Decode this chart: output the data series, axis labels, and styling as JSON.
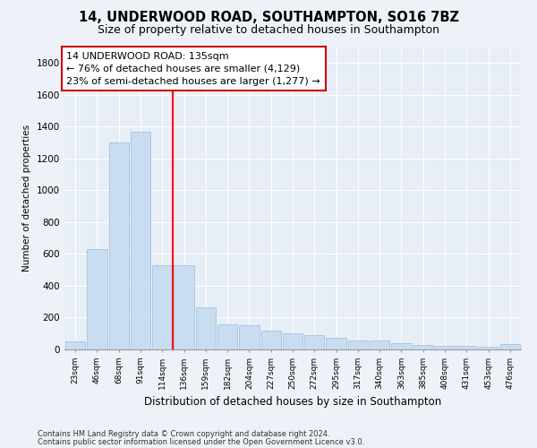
{
  "title": "14, UNDERWOOD ROAD, SOUTHAMPTON, SO16 7BZ",
  "subtitle": "Size of property relative to detached houses in Southampton",
  "xlabel": "Distribution of detached houses by size in Southampton",
  "ylabel": "Number of detached properties",
  "categories": [
    "23sqm",
    "46sqm",
    "68sqm",
    "91sqm",
    "114sqm",
    "136sqm",
    "159sqm",
    "182sqm",
    "204sqm",
    "227sqm",
    "250sqm",
    "272sqm",
    "295sqm",
    "317sqm",
    "340sqm",
    "363sqm",
    "385sqm",
    "408sqm",
    "431sqm",
    "453sqm",
    "476sqm"
  ],
  "values": [
    50,
    630,
    1300,
    1370,
    530,
    530,
    265,
    155,
    150,
    120,
    100,
    90,
    75,
    58,
    55,
    40,
    30,
    25,
    20,
    15,
    35
  ],
  "bar_color": "#c9ddf2",
  "bar_edge_color": "#9bbcd8",
  "red_line_x": 4.5,
  "annotation_text": "14 UNDERWOOD ROAD: 135sqm\n← 76% of detached houses are smaller (4,129)\n23% of semi-detached houses are larger (1,277) →",
  "annotation_box_color": "#ffffff",
  "annotation_box_edge_color": "#cc0000",
  "ylim": [
    0,
    1900
  ],
  "yticks": [
    0,
    200,
    400,
    600,
    800,
    1000,
    1200,
    1400,
    1600,
    1800
  ],
  "footer_line1": "Contains HM Land Registry data © Crown copyright and database right 2024.",
  "footer_line2": "Contains public sector information licensed under the Open Government Licence v3.0.",
  "background_color": "#eef2f8",
  "plot_background_color": "#e8eef6",
  "grid_color": "#ffffff",
  "title_fontsize": 10.5,
  "subtitle_fontsize": 9,
  "annotation_fontsize": 8,
  "xlabel_fontsize": 8.5,
  "ylabel_fontsize": 7.5,
  "xtick_fontsize": 6.5,
  "ytick_fontsize": 7.5,
  "footer_fontsize": 6
}
